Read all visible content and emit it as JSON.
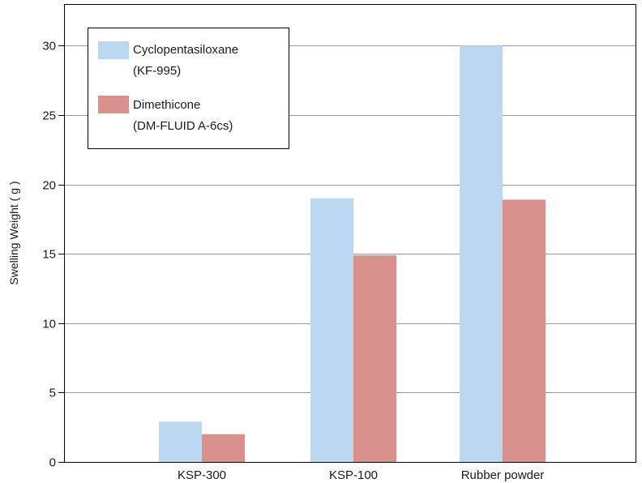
{
  "chart_data": {
    "type": "bar",
    "categories": [
      "KSP-300",
      "KSP-100",
      "Rubber powder"
    ],
    "series": [
      {
        "name": [
          "Cyclopentasiloxane",
          "(KF-995)"
        ],
        "values": [
          2.9,
          19.0,
          30.0
        ],
        "color": "#bcd8f1"
      },
      {
        "name": [
          "Dimethicone",
          "(DM-FLUID A-6cs)"
        ],
        "values": [
          2.0,
          14.9,
          18.9
        ],
        "color": "#d8918d"
      }
    ],
    "title": "",
    "xlabel": "",
    "ylabel": "Swelling Weight ( g )",
    "ylim": [
      0,
      33
    ],
    "yticks": [
      0,
      5,
      10,
      15,
      20,
      25,
      30
    ],
    "grid": true,
    "legend_position": "top-left"
  }
}
